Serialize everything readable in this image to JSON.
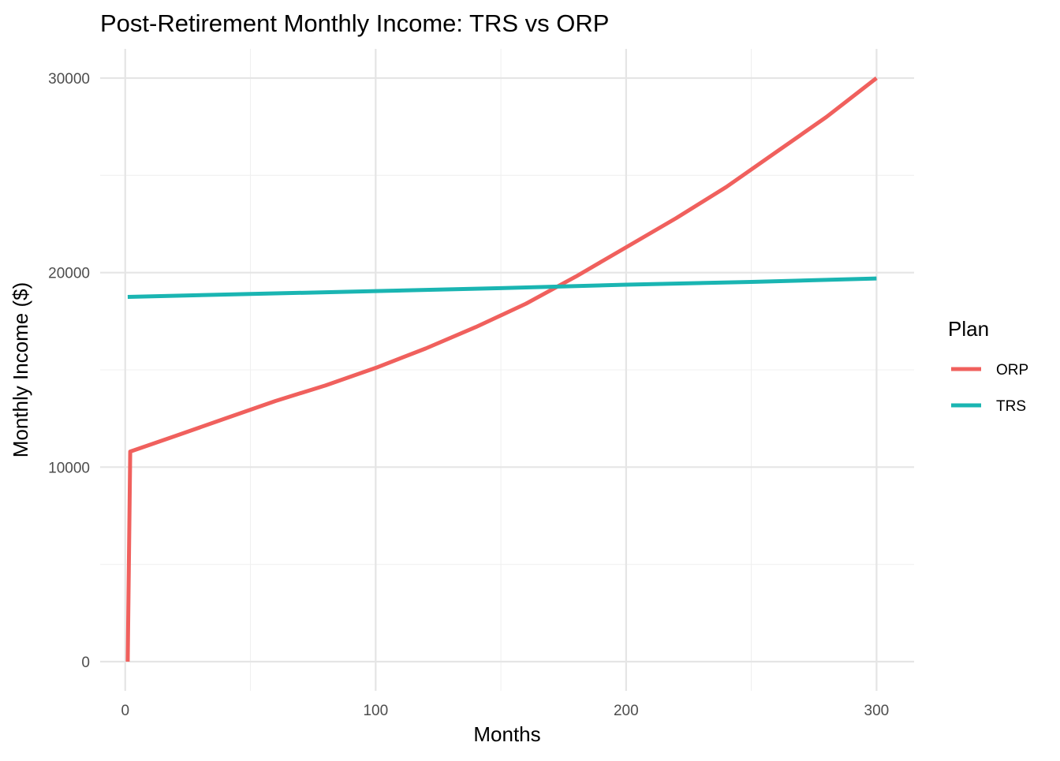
{
  "chart_data": {
    "type": "line",
    "title": "Post-Retirement Monthly Income: TRS vs ORP",
    "xlabel": "Months",
    "ylabel": "Monthly Income ($)",
    "xlim": [
      -10,
      315
    ],
    "ylim": [
      -1500,
      31500
    ],
    "x_ticks": [
      0,
      100,
      200,
      300
    ],
    "y_ticks": [
      0,
      10000,
      20000,
      30000
    ],
    "x_minor": [
      50,
      150,
      250
    ],
    "y_minor": [
      5000,
      15000,
      25000
    ],
    "grid": true,
    "legend": {
      "title": "Plan",
      "placement": "right"
    },
    "series": [
      {
        "name": "ORP",
        "color": "#f0605d",
        "points": [
          [
            1,
            0
          ],
          [
            2,
            10800
          ],
          [
            20,
            11600
          ],
          [
            40,
            12500
          ],
          [
            60,
            13400
          ],
          [
            80,
            14200
          ],
          [
            100,
            15100
          ],
          [
            120,
            16100
          ],
          [
            140,
            17200
          ],
          [
            160,
            18400
          ],
          [
            180,
            19800
          ],
          [
            200,
            21300
          ],
          [
            220,
            22800
          ],
          [
            240,
            24400
          ],
          [
            260,
            26200
          ],
          [
            280,
            28000
          ],
          [
            300,
            30000
          ]
        ]
      },
      {
        "name": "TRS",
        "color": "#1ab5b2",
        "points": [
          [
            1,
            18750
          ],
          [
            50,
            18900
          ],
          [
            100,
            19050
          ],
          [
            150,
            19200
          ],
          [
            200,
            19380
          ],
          [
            250,
            19520
          ],
          [
            300,
            19700
          ]
        ]
      }
    ]
  }
}
